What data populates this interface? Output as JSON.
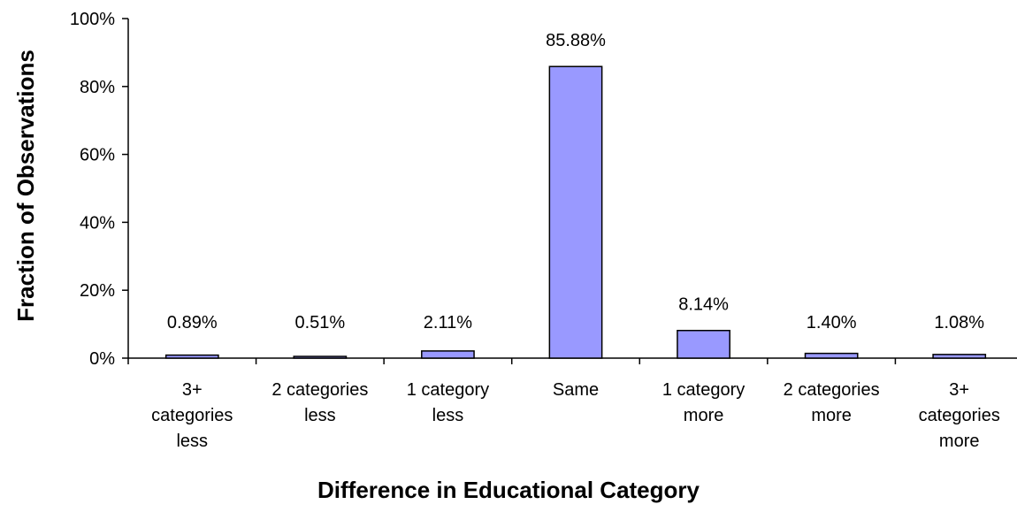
{
  "chart_data": {
    "type": "bar",
    "title": "",
    "xlabel": "Difference in Educational Category",
    "ylabel": "Fraction of Observations",
    "ylim": [
      0,
      100
    ],
    "yticks": [
      "0%",
      "20%",
      "40%",
      "60%",
      "80%",
      "100%"
    ],
    "grid": false,
    "categories": [
      "3+ categories less",
      "2 categories less",
      "1 category less",
      "Same",
      "1 category more",
      "2 categories more",
      "3+ categories more"
    ],
    "category_lines": [
      [
        "3+",
        "categories",
        "less"
      ],
      [
        "2 categories",
        "less"
      ],
      [
        "1 category",
        "less"
      ],
      [
        "Same"
      ],
      [
        "1 category",
        "more"
      ],
      [
        "2 categories",
        "more"
      ],
      [
        "3+",
        "categories",
        "more"
      ]
    ],
    "values": [
      0.89,
      0.51,
      2.11,
      85.88,
      8.14,
      1.4,
      1.08
    ],
    "data_labels": [
      "0.89%",
      "0.51%",
      "2.11%",
      "85.88%",
      "8.14%",
      "1.40%",
      "1.08%"
    ],
    "colors": {
      "bar_fill": "#9999ff",
      "bar_stroke": "#000000",
      "axis": "#000000"
    }
  }
}
